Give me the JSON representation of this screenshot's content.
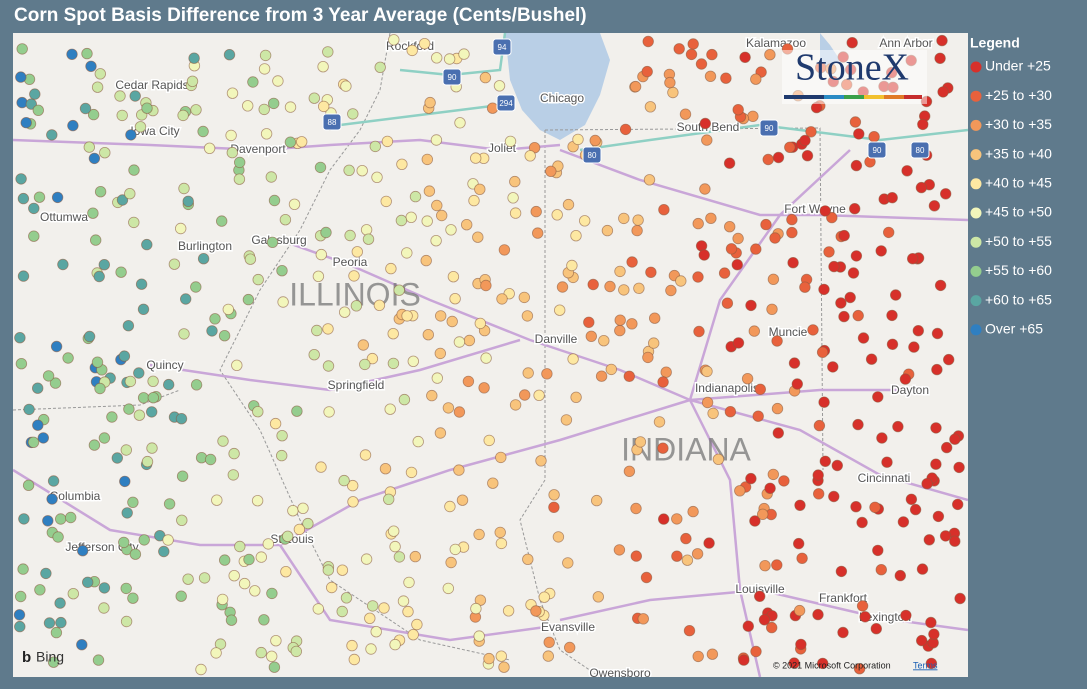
{
  "header": {
    "title": "Corn Spot Basis Difference from 3 Year Average (Cents/Bushel)"
  },
  "legend": {
    "title": "Legend",
    "items": [
      {
        "label": "Under +25",
        "color": "#d7302a"
      },
      {
        "label": "+25 to +30",
        "color": "#e8613c"
      },
      {
        "label": "+30 to +35",
        "color": "#f2985a"
      },
      {
        "label": "+35 to +40",
        "color": "#f8c47c"
      },
      {
        "label": "+40 to +45",
        "color": "#fde8a2"
      },
      {
        "label": "+45 to +50",
        "color": "#f2f6bb"
      },
      {
        "label": "+50 to +55",
        "color": "#cde7a6"
      },
      {
        "label": "+55 to +60",
        "color": "#94cd8e"
      },
      {
        "label": "+60 to +65",
        "color": "#5aa6a2"
      },
      {
        "label": "Over +65",
        "color": "#2f7fc1"
      }
    ]
  },
  "map": {
    "labels": [
      "Rockford",
      "Cedar Rapids",
      "Iowa City",
      "Davenport",
      "Chicago",
      "Joliet",
      "South Bend",
      "Kalamazoo",
      "Ann Arbor",
      "Fort Wayne",
      "Ottumwa",
      "Galesburg",
      "Burlington",
      "Peoria",
      "Danville",
      "Muncie",
      "Quincy",
      "Springfield",
      "Indianapolis",
      "Dayton",
      "Cincinnati",
      "Columbia",
      "St Louis",
      "Jefferson City",
      "Louisville",
      "Frankfort",
      "Evansville",
      "Lexington",
      "Owensboro"
    ],
    "states": [
      "ILLINOIS",
      "INDIANA"
    ],
    "shields": [
      "94",
      "90",
      "294",
      "88",
      "90",
      "80",
      "90",
      "80"
    ],
    "logo": "StoneX",
    "attribution": "Bing",
    "copyright": "© 2021 Microsoft Corporation",
    "terms": "Terms"
  }
}
